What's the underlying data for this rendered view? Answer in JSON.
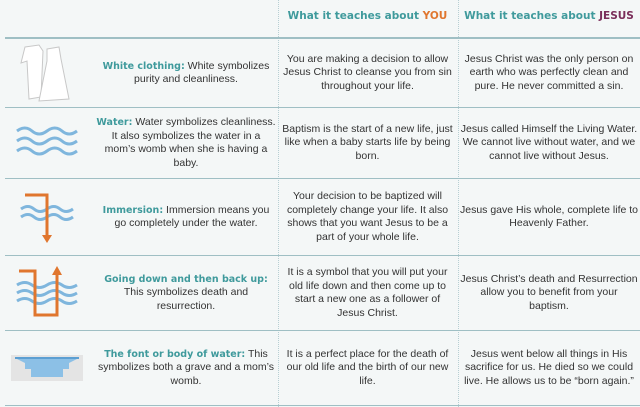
{
  "header": {
    "col2_prefix": "What it teaches about ",
    "col2_subject": "YOU",
    "col3_prefix": "What it teaches about ",
    "col3_subject": "JESUS"
  },
  "colors": {
    "teal": "#3f9a9c",
    "orange": "#e0762e",
    "plum": "#7a2e5a",
    "water": "#7fb6dd"
  },
  "rows": [
    {
      "icon": "white-clothing-icon",
      "term": "White clothing:",
      "symbol": " White symbolizes purity and cleanliness.",
      "you": "You are making a decision to allow Jesus Christ to cleanse you from sin throughout your life.",
      "jesus": "Jesus Christ was the only person on earth who was perfectly clean and pure. He never committed a sin."
    },
    {
      "icon": "water-waves-icon",
      "term": "Water:",
      "symbol": " Water symbolizes cleanliness. It also symbolizes the water in a mom’s womb when she is having a baby.",
      "you": "Baptism is the start of a new life, just like when a baby starts life by being born.",
      "jesus": "Jesus called Himself the Living Water. We cannot live without water, and we cannot live without Jesus."
    },
    {
      "icon": "immersion-arrow-icon",
      "term": "Immersion:",
      "symbol": " Immersion means you go completely under the water.",
      "you": "Your decision to be baptized will completely change your life. It also shows that you want Jesus to be a part of your whole life.",
      "jesus": "Jesus gave His whole, complete life to Heavenly Father."
    },
    {
      "icon": "down-and-up-arrow-icon",
      "term": "Going down and then back up:",
      "symbol": " This symbolizes death and resurrection.",
      "you": "It is a symbol that you will put your old life down and then come up to start a new one as a follower of Jesus Christ.",
      "jesus": "Jesus Christ’s death and Resurrection allow you to benefit from your baptism."
    },
    {
      "icon": "baptismal-font-icon",
      "term": "The font or body of water:",
      "symbol": " This symbolizes both a grave and a mom’s womb.",
      "you": "It is a perfect place for the death of our old life and the birth of our new life.",
      "jesus": "Jesus went below all things in His sacrifice for us. He died so we could live. He allows us to be “born again.”"
    }
  ]
}
